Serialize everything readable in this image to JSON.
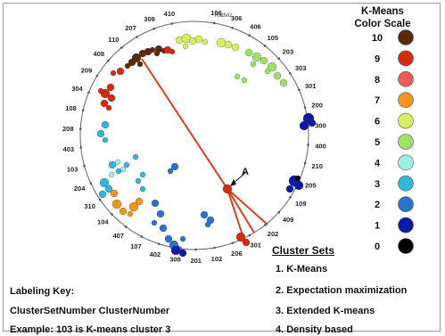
{
  "figure": {
    "radviz_label": "RadViz",
    "point_label": "A",
    "anchors": [
      "106",
      "306",
      "406",
      "105",
      "203",
      "303",
      "301",
      "200",
      "300",
      "400",
      "210",
      "205",
      "109",
      "409",
      "202",
      "301",
      "206",
      "102",
      "201",
      "308",
      "402",
      "107",
      "407",
      "104",
      "310",
      "204",
      "103",
      "403",
      "208",
      "108",
      "304",
      "209",
      "408",
      "110",
      "207",
      "309",
      "410"
    ]
  },
  "color_scale": {
    "title_line1": "K-Means",
    "title_line2": "Color Scale",
    "levels": [
      {
        "label": "10",
        "color": "#5b2a0e"
      },
      {
        "label": "9",
        "color": "#d42a12"
      },
      {
        "label": "8",
        "color": "#ee5b5b"
      },
      {
        "label": "7",
        "color": "#f2951c"
      },
      {
        "label": "6",
        "color": "#d8ec62"
      },
      {
        "label": "5",
        "color": "#9fe06a"
      },
      {
        "label": "4",
        "color": "#9ef0e6"
      },
      {
        "label": "3",
        "color": "#35b4dc"
      },
      {
        "label": "2",
        "color": "#2a72cc"
      },
      {
        "label": "1",
        "color": "#0a1aa6"
      },
      {
        "label": "0",
        "color": "#000000"
      }
    ]
  },
  "cluster_sets": {
    "title": "Cluster Sets",
    "items": [
      "1.  K-Means",
      "2.  Expectation maximization",
      "3.  Extended K-means",
      "4.  Density based"
    ]
  },
  "labeling_key": {
    "title": "Labeling Key:",
    "format": "ClusterSetNumber ClusterNumber",
    "example": "Example: 103 is K-means cluster 3"
  },
  "colors": {
    "line": "#d9401f",
    "axis": "#666666",
    "frame": "#9a9a9a"
  }
}
